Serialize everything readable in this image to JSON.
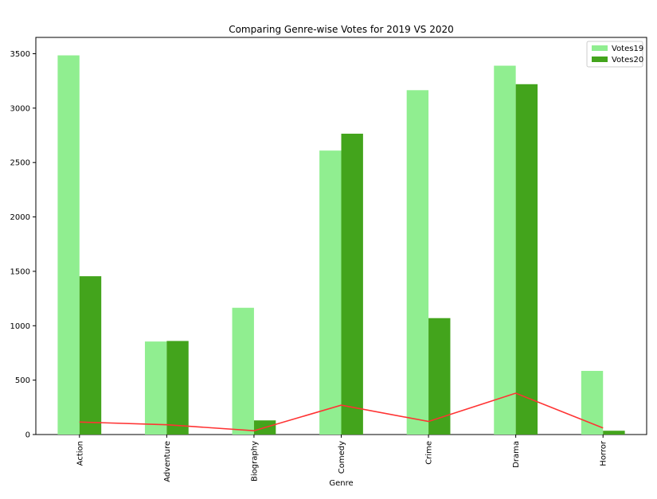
{
  "chart_data": {
    "type": "bar",
    "title": "Comparing Genre-wise Votes for 2019 VS 2020",
    "xlabel": "Genre",
    "ylabel": "",
    "categories": [
      "Action",
      "Adventure",
      "Biography",
      "Comedy",
      "Crime",
      "Drama",
      "Horror"
    ],
    "series": [
      {
        "name": "Votes19",
        "values": [
          3485,
          855,
          1165,
          2610,
          3165,
          3390,
          585
        ],
        "color": "#90ee90"
      },
      {
        "name": "Votes20",
        "values": [
          1455,
          860,
          130,
          2765,
          1070,
          3220,
          35
        ],
        "color": "#43a41c"
      }
    ],
    "line": {
      "values": [
        115,
        90,
        35,
        270,
        120,
        380,
        60
      ],
      "color": "#ff3333"
    },
    "ylim": [
      0,
      3650
    ],
    "yticks": [
      0,
      500,
      1000,
      1500,
      2000,
      2500,
      3000,
      3500
    ],
    "grid": false,
    "legend_position": "top-right"
  }
}
